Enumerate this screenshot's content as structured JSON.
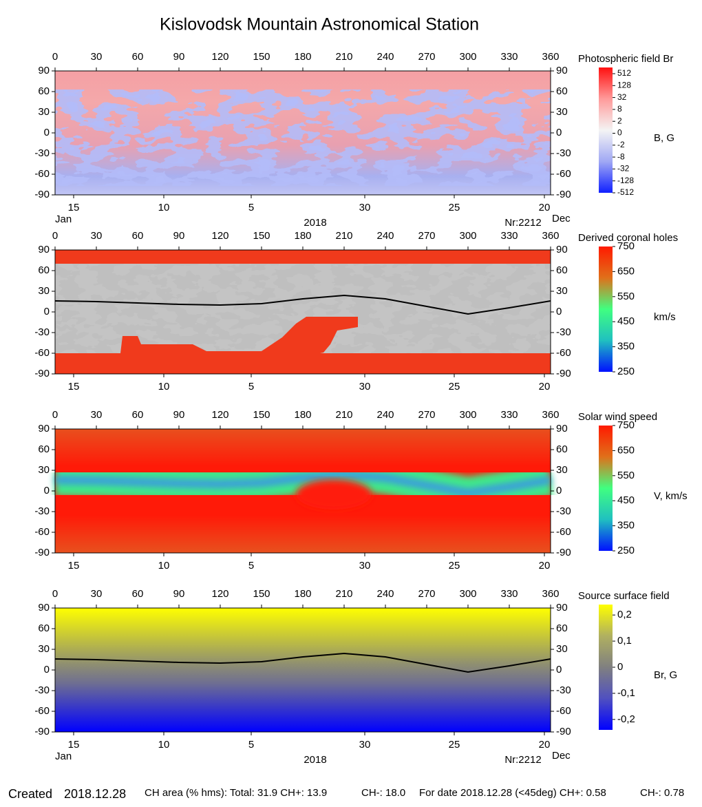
{
  "title": "Kislovodsk Mountain Astronomical Station",
  "chart_data": [
    {
      "type": "map",
      "title": "Photospheric field Br",
      "xlim": [
        0,
        360
      ],
      "xticks": [
        0,
        30,
        60,
        90,
        120,
        150,
        180,
        210,
        240,
        270,
        300,
        330,
        360
      ],
      "ylim": [
        -90,
        90
      ],
      "yticks": [
        -90,
        -60,
        -30,
        0,
        30,
        60,
        90
      ],
      "date_ticks": [
        {
          "value": 13.5,
          "label": "15"
        },
        {
          "value": 79,
          "label": "10"
        },
        {
          "value": 142.5,
          "label": "5"
        },
        {
          "value": 225,
          "label": "30"
        },
        {
          "value": 290,
          "label": "25"
        },
        {
          "value": 355.5,
          "label": "20"
        }
      ],
      "start_month": "Jan",
      "end_month": "Dec",
      "year": "2018",
      "rotation": "Nr:2212",
      "colorbar": {
        "label": "B, G",
        "ticks": [
          512,
          128,
          32,
          8,
          2,
          0,
          -2,
          -8,
          -32,
          -128,
          -512
        ],
        "colors": [
          "#ff1010",
          "#ff9a9a",
          "#f4f4f4",
          "#a0a8f4",
          "#1020ff"
        ]
      }
    },
    {
      "type": "map",
      "title": "Derived coronal holes",
      "xlim": [
        0,
        360
      ],
      "xticks": [
        0,
        30,
        60,
        90,
        120,
        150,
        180,
        210,
        240,
        270,
        300,
        330,
        360
      ],
      "ylim": [
        -90,
        90
      ],
      "yticks": [
        -90,
        -60,
        -30,
        0,
        30,
        60,
        90
      ],
      "date_ticks": [
        {
          "value": 13.5,
          "label": "15"
        },
        {
          "value": 79,
          "label": "10"
        },
        {
          "value": 142.5,
          "label": "5"
        },
        {
          "value": 225,
          "label": "30"
        },
        {
          "value": 290,
          "label": "25"
        },
        {
          "value": 355.5,
          "label": "20"
        }
      ],
      "neutral_line": {
        "x": [
          0,
          30,
          60,
          90,
          120,
          150,
          180,
          210,
          240,
          270,
          300,
          330,
          360
        ],
        "y": [
          16,
          15,
          13,
          11,
          10,
          12,
          19,
          24,
          19,
          8,
          -3,
          6,
          16
        ],
        "color": "#000000"
      },
      "colorbar": {
        "label": "km/s",
        "clim": [
          250,
          750
        ],
        "ticks": [
          750,
          650,
          550,
          450,
          350,
          250
        ],
        "colors": [
          "#ff1a00",
          "#e0701a",
          "#40ff80",
          "#20c0c0",
          "#0010ff"
        ]
      }
    },
    {
      "type": "map",
      "title": "Solar wind speed",
      "xlim": [
        0,
        360
      ],
      "xticks": [
        0,
        30,
        60,
        90,
        120,
        150,
        180,
        210,
        240,
        270,
        300,
        330,
        360
      ],
      "ylim": [
        -90,
        90
      ],
      "yticks": [
        -90,
        -60,
        -30,
        0,
        30,
        60,
        90
      ],
      "date_ticks": [
        {
          "value": 13.5,
          "label": "15"
        },
        {
          "value": 79,
          "label": "10"
        },
        {
          "value": 142.5,
          "label": "5"
        },
        {
          "value": 225,
          "label": "30"
        },
        {
          "value": 290,
          "label": "25"
        },
        {
          "value": 355.5,
          "label": "20"
        }
      ],
      "colorbar": {
        "label": "V, km/s",
        "clim": [
          250,
          750
        ],
        "ticks": [
          750,
          650,
          550,
          450,
          350,
          250
        ],
        "colors": [
          "#ff1a00",
          "#e0701a",
          "#40ff80",
          "#20c0c0",
          "#0010ff"
        ]
      }
    },
    {
      "type": "map",
      "title": "Source surface field",
      "xlim": [
        0,
        360
      ],
      "xticks": [
        0,
        30,
        60,
        90,
        120,
        150,
        180,
        210,
        240,
        270,
        300,
        330,
        360
      ],
      "ylim": [
        -90,
        90
      ],
      "yticks": [
        -90,
        -60,
        -30,
        0,
        30,
        60,
        90
      ],
      "date_ticks": [
        {
          "value": 13.5,
          "label": "15"
        },
        {
          "value": 79,
          "label": "10"
        },
        {
          "value": 142.5,
          "label": "5"
        },
        {
          "value": 225,
          "label": "30"
        },
        {
          "value": 290,
          "label": "25"
        },
        {
          "value": 355.5,
          "label": "20"
        }
      ],
      "start_month": "Jan",
      "end_month": "Dec",
      "year": "2018",
      "rotation": "Nr:2212",
      "neutral_line": {
        "x": [
          0,
          30,
          60,
          90,
          120,
          150,
          180,
          210,
          240,
          270,
          300,
          330,
          360
        ],
        "y": [
          16,
          15,
          13,
          11,
          10,
          12,
          19,
          24,
          19,
          8,
          -3,
          6,
          16
        ],
        "color": "#000000"
      },
      "colorbar": {
        "label": "Br, G",
        "clim": [
          -0.24,
          0.24
        ],
        "ticks": [
          {
            "value": 0.2,
            "label": "0,2"
          },
          {
            "value": 0.1,
            "label": "0,1"
          },
          0,
          {
            "value": -0.1,
            "label": "-0,1"
          },
          {
            "value": -0.2,
            "label": "-0,2"
          }
        ],
        "colors": [
          "#ffff00",
          "#b0b060",
          "#808080",
          "#5050c0",
          "#0000ff"
        ]
      }
    }
  ],
  "footer": {
    "created_label": "Created",
    "created_date": "2018.12.28",
    "ch_area": "CH area (% hms): Total: 31.9 CH+: 13.9",
    "ch_minus": "CH-: 18.0",
    "for_date": "For date 2018.12.28 (<45deg) CH+: 0.58",
    "ch_minus_date": "CH-: 0.78"
  }
}
